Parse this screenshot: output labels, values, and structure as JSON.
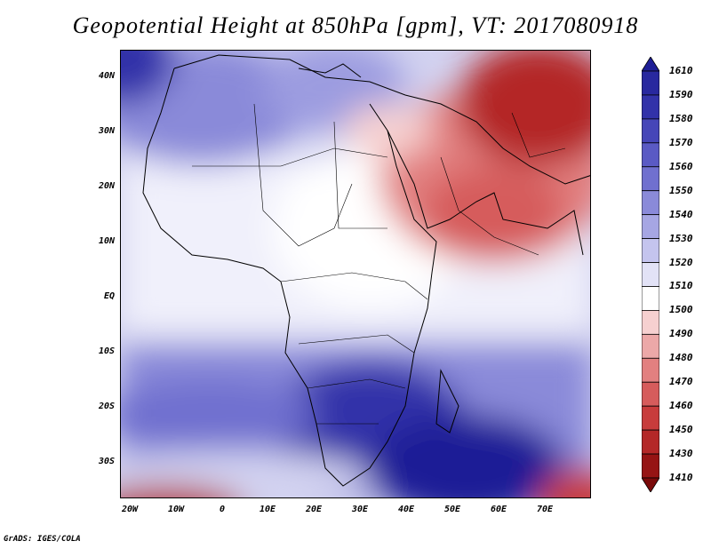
{
  "title": "Geopotential Height at 850hPa [gpm], VT: 2017080918",
  "credit": "GrADS: IGES/COLA",
  "map": {
    "region": "Africa and Middle East",
    "variable": "Geopotential Height 850hPa",
    "lat_labels": [
      "40N",
      "30N",
      "20N",
      "10N",
      "EQ",
      "10S",
      "20S",
      "30S"
    ],
    "lon_labels": [
      "20W",
      "10W",
      "0",
      "10E",
      "20E",
      "30E",
      "40E",
      "50E",
      "60E",
      "70E"
    ]
  },
  "colorbar": {
    "levels": [
      "1610",
      "1590",
      "1580",
      "1570",
      "1560",
      "1550",
      "1540",
      "1530",
      "1520",
      "1510",
      "1500",
      "1490",
      "1480",
      "1470",
      "1460",
      "1450",
      "1430",
      "1410"
    ],
    "colors": [
      "#1e1e96",
      "#28289f",
      "#3232a9",
      "#4646b8",
      "#5a5ac4",
      "#7070cf",
      "#8a8ad9",
      "#a6a6e3",
      "#c4c4ee",
      "#e2e2f6",
      "#ffffff",
      "#f6d0d0",
      "#eca8a8",
      "#e28080",
      "#d65c5c",
      "#c83c3c",
      "#b42828",
      "#961414",
      "#7a0a0a"
    ]
  }
}
